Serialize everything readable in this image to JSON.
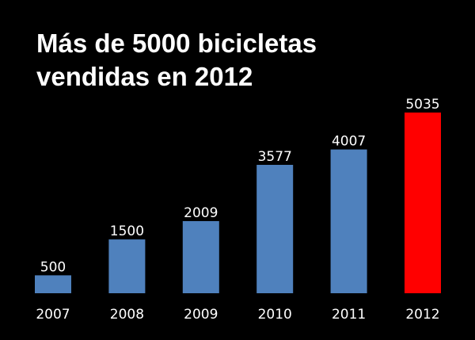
{
  "colors": {
    "background": "#000000",
    "bar": "#4f81bd",
    "highlight": "#ff0000",
    "text": "#ffffff"
  },
  "chart_data": {
    "type": "bar",
    "title": "Más de 5000 bicicletas vendidas en 2012",
    "title_lines": [
      "Más de 5000 bicicletas",
      "vendidas en 2012"
    ],
    "xlabel": "",
    "ylabel": "",
    "categories": [
      "2007",
      "2008",
      "2009",
      "2010",
      "2011",
      "2012"
    ],
    "values": [
      500,
      1500,
      2009,
      3577,
      4007,
      5035
    ],
    "data_labels": [
      "500",
      "1500",
      "2009",
      "3577",
      "4007",
      "5035"
    ],
    "highlight_index": 5,
    "ylim": [
      0,
      5035
    ],
    "grid": false,
    "legend": "none"
  }
}
